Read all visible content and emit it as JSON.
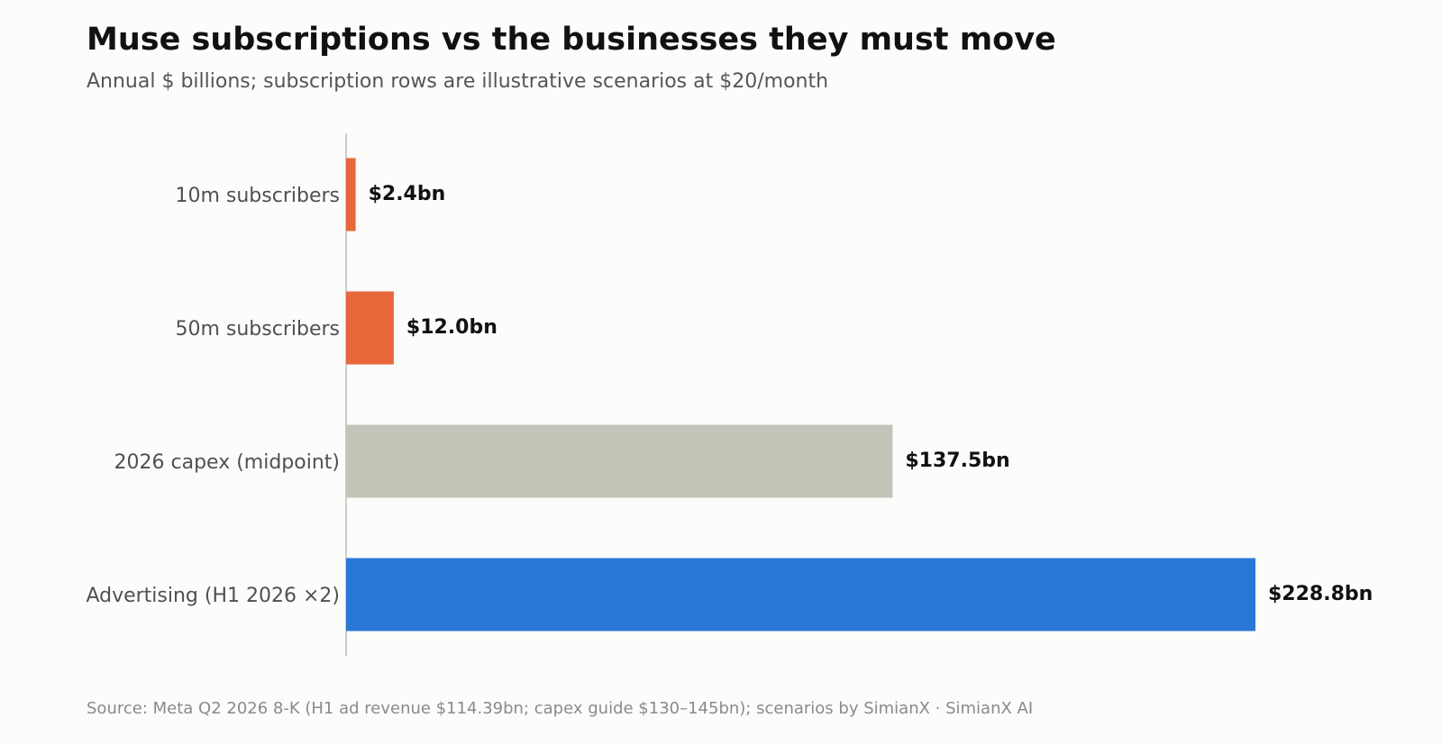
{
  "title": "Muse subscriptions vs the businesses they must move",
  "subtitle": "Annual $ billions; subscription rows are illustrative scenarios at $20/month",
  "source": "Source: Meta Q2 2026 8-K (H1 ad revenue $114.39bn; capex guide $130–145bn); scenarios by SimianX  ·  SimianX AI",
  "chart_data": {
    "type": "bar",
    "orientation": "horizontal",
    "categories": [
      "10m subscribers",
      "50m subscribers",
      "2026 capex (midpoint)",
      "Advertising (H1 2026 ×2)"
    ],
    "values": [
      2.4,
      12.0,
      137.5,
      228.8
    ],
    "value_labels": [
      "$2.4bn",
      "$12.0bn",
      "$137.5bn",
      "$228.8bn"
    ],
    "colors": [
      "#e8673a",
      "#e8673a",
      "#c3c3b8",
      "#2a78d6"
    ],
    "xlim": [
      0,
      228.8
    ],
    "grid": false,
    "legend": "none"
  }
}
